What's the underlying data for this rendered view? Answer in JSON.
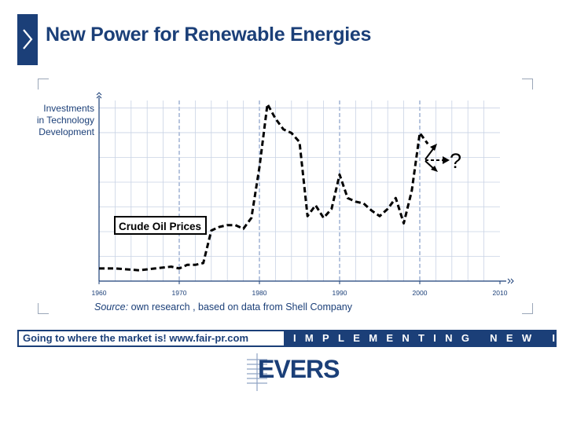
{
  "header": {
    "title": "New Power for Renewable Energies"
  },
  "chart_data": {
    "type": "line",
    "ylabel_lines": [
      "Investments",
      "in Technology",
      "Development"
    ],
    "xlim": [
      1960,
      2010
    ],
    "x_ticks": [
      1960,
      1970,
      1980,
      1990,
      2000,
      2010
    ],
    "ylim": [
      0,
      100
    ],
    "y_unit": "relative scale (unlabeled)",
    "grid": true,
    "series": [
      {
        "name": "Crude Oil Prices",
        "style": "dashed",
        "x": [
          1960,
          1962,
          1965,
          1967,
          1969,
          1970,
          1971,
          1972,
          1973,
          1974,
          1975,
          1976,
          1977,
          1978,
          1979,
          1980,
          1981,
          1982,
          1983,
          1984,
          1985,
          1986,
          1987,
          1988,
          1989,
          1990,
          1991,
          1992,
          1993,
          1994,
          1995,
          1996,
          1997,
          1998,
          1999,
          2000,
          2001
        ],
        "y": [
          7,
          7,
          6,
          7,
          8,
          7,
          9,
          9,
          10,
          28,
          30,
          31,
          31,
          29,
          35,
          63,
          98,
          90,
          84,
          82,
          77,
          36,
          42,
          35,
          40,
          59,
          46,
          44,
          43,
          39,
          36,
          40,
          46,
          32,
          50,
          82,
          76
        ]
      }
    ],
    "annotations": [
      {
        "text": "Crude Oil Prices"
      },
      {
        "text": "?"
      }
    ]
  },
  "source": {
    "label": "Source:",
    "text": " own research , based on data from Shell Company"
  },
  "footer": {
    "left": "Going to where the market is!   www.fair-pr.com",
    "right": "IMPLEMENTING NEW IDEAS"
  },
  "logo": {
    "text": "EVERS"
  },
  "colors": {
    "brand": "#1b3f78",
    "grid": "#b9c6db",
    "line": "#000000"
  }
}
